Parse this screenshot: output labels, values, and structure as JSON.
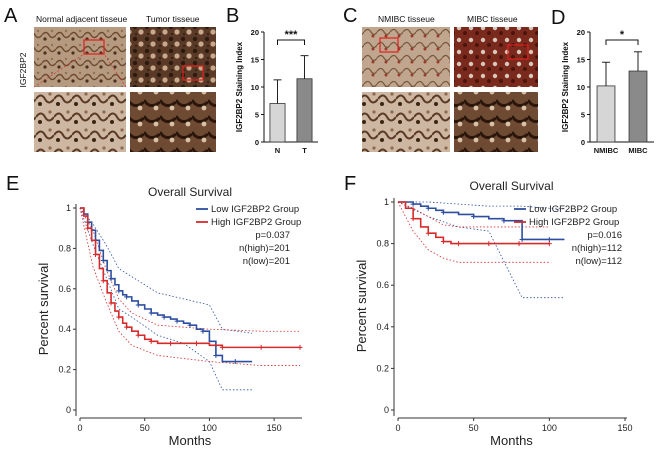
{
  "panel_labels": {
    "a": "A",
    "b": "B",
    "c": "C",
    "d": "D",
    "e": "E",
    "f": "F"
  },
  "histology": {
    "a_left": "Normal adjacent tisseue",
    "a_right": "Tumor tisseue",
    "a_side": "IGF2BP2",
    "c_left": "NMIBC tisseue",
    "c_right": "MIBC tisseue"
  },
  "colors": {
    "low": "#2e4fa0",
    "high": "#d62b2b",
    "bar_light": "#d6d6d6",
    "bar_dark": "#8a8a8a"
  },
  "chart_data": [
    {
      "id": "B",
      "type": "bar",
      "ylabel": "IGF2BP2 Staining Index",
      "categories": [
        "N",
        "T"
      ],
      "values": [
        7,
        11.5
      ],
      "errors": [
        4.3,
        4.2
      ],
      "ylim": [
        0,
        20
      ],
      "yticks": [
        0,
        5,
        10,
        15,
        20
      ],
      "significance": "***"
    },
    {
      "id": "D",
      "type": "bar",
      "ylabel": "IGF2BP2 Staining Index",
      "categories": [
        "NMIBC",
        "MIBC"
      ],
      "values": [
        10.2,
        12.9
      ],
      "errors": [
        4.3,
        3.5
      ],
      "ylim": [
        0,
        20
      ],
      "yticks": [
        0,
        5,
        10,
        15,
        20
      ],
      "significance": "*"
    },
    {
      "id": "E",
      "type": "line",
      "title": "Overall Survival",
      "xlabel": "Months",
      "ylabel": "Percent survival",
      "xlim": [
        0,
        170
      ],
      "ylim": [
        0,
        1
      ],
      "xticks": [
        0,
        50,
        100,
        150
      ],
      "yticks": [
        0.0,
        0.2,
        0.4,
        0.6,
        0.8,
        1.0
      ],
      "legend": {
        "low_label": "Low IGF2BP2 Group",
        "high_label": "High IGF2BP2 Group",
        "p": "p=0.037",
        "n_high": "n(high)=201",
        "n_low": "n(low)=201"
      },
      "series": [
        {
          "name": "Low IGF2BP2 Group",
          "x": [
            0,
            3,
            6,
            9,
            12,
            15,
            18,
            21,
            24,
            27,
            30,
            33,
            36,
            40,
            45,
            50,
            55,
            60,
            65,
            70,
            75,
            80,
            85,
            90,
            95,
            100,
            105,
            110,
            120,
            133
          ],
          "y": [
            1.0,
            0.97,
            0.93,
            0.89,
            0.84,
            0.79,
            0.74,
            0.69,
            0.65,
            0.62,
            0.59,
            0.57,
            0.56,
            0.54,
            0.52,
            0.5,
            0.48,
            0.47,
            0.46,
            0.45,
            0.44,
            0.43,
            0.42,
            0.4,
            0.39,
            0.34,
            0.27,
            0.24,
            0.24,
            0.24
          ]
        },
        {
          "name": "High IGF2BP2 Group",
          "x": [
            0,
            3,
            6,
            9,
            12,
            15,
            18,
            21,
            24,
            27,
            30,
            33,
            36,
            40,
            45,
            50,
            55,
            60,
            70,
            80,
            90,
            100,
            110,
            120,
            140,
            160,
            170
          ],
          "y": [
            1.0,
            0.96,
            0.9,
            0.84,
            0.77,
            0.7,
            0.64,
            0.58,
            0.53,
            0.49,
            0.46,
            0.43,
            0.41,
            0.39,
            0.37,
            0.35,
            0.34,
            0.33,
            0.33,
            0.33,
            0.33,
            0.32,
            0.31,
            0.31,
            0.31,
            0.31,
            0.31
          ]
        }
      ],
      "ci": {
        "low_upper": [
          [
            0,
            1.0
          ],
          [
            10,
            0.92
          ],
          [
            20,
            0.82
          ],
          [
            30,
            0.7
          ],
          [
            40,
            0.66
          ],
          [
            60,
            0.58
          ],
          [
            80,
            0.55
          ],
          [
            100,
            0.52
          ],
          [
            110,
            0.4
          ],
          [
            133,
            0.38
          ]
        ],
        "low_lower": [
          [
            0,
            1.0
          ],
          [
            10,
            0.82
          ],
          [
            20,
            0.66
          ],
          [
            30,
            0.5
          ],
          [
            40,
            0.46
          ],
          [
            60,
            0.37
          ],
          [
            80,
            0.33
          ],
          [
            100,
            0.24
          ],
          [
            110,
            0.1
          ],
          [
            133,
            0.1
          ]
        ],
        "high_upper": [
          [
            0,
            1.0
          ],
          [
            10,
            0.89
          ],
          [
            20,
            0.7
          ],
          [
            30,
            0.55
          ],
          [
            40,
            0.48
          ],
          [
            60,
            0.42
          ],
          [
            100,
            0.4
          ],
          [
            140,
            0.39
          ],
          [
            170,
            0.39
          ]
        ],
        "high_lower": [
          [
            0,
            1.0
          ],
          [
            10,
            0.71
          ],
          [
            20,
            0.54
          ],
          [
            30,
            0.39
          ],
          [
            40,
            0.32
          ],
          [
            60,
            0.27
          ],
          [
            100,
            0.24
          ],
          [
            140,
            0.22
          ],
          [
            170,
            0.22
          ]
        ]
      }
    },
    {
      "id": "F",
      "type": "line",
      "title": "Overall Survival",
      "xlabel": "Months",
      "ylabel": "Percent survival",
      "xlim": [
        0,
        150
      ],
      "ylim": [
        0,
        1
      ],
      "xticks": [
        0,
        50,
        100,
        150
      ],
      "yticks": [
        0.0,
        0.2,
        0.4,
        0.6,
        0.8,
        1.0
      ],
      "legend": {
        "low_label": "Low IGF2BP2 Group",
        "high_label": "High IGF2BP2 Group",
        "p": "p=0.016",
        "n_high": "n(high)=112",
        "n_low": "n(low)=112"
      },
      "series": [
        {
          "name": "Low IGF2BP2 Group",
          "x": [
            0,
            5,
            10,
            15,
            20,
            25,
            30,
            40,
            50,
            60,
            70,
            80,
            82,
            90,
            100,
            110
          ],
          "y": [
            1.0,
            1.0,
            0.99,
            0.98,
            0.97,
            0.96,
            0.95,
            0.94,
            0.93,
            0.92,
            0.91,
            0.91,
            0.82,
            0.82,
            0.82,
            0.82
          ]
        },
        {
          "name": "High IGF2BP2 Group",
          "x": [
            0,
            5,
            10,
            15,
            20,
            25,
            30,
            35,
            40,
            50,
            60,
            70,
            80,
            90,
            100
          ],
          "y": [
            1.0,
            0.97,
            0.92,
            0.88,
            0.85,
            0.83,
            0.81,
            0.8,
            0.8,
            0.8,
            0.8,
            0.8,
            0.8,
            0.8,
            0.8
          ]
        }
      ],
      "ci": {
        "low_upper": [
          [
            0,
            1.0
          ],
          [
            20,
            1.0
          ],
          [
            40,
            0.99
          ],
          [
            60,
            0.98
          ],
          [
            82,
            0.98
          ],
          [
            100,
            0.97
          ],
          [
            110,
            0.97
          ]
        ],
        "low_lower": [
          [
            0,
            1.0
          ],
          [
            20,
            0.93
          ],
          [
            40,
            0.88
          ],
          [
            60,
            0.86
          ],
          [
            82,
            0.54
          ],
          [
            100,
            0.54
          ],
          [
            110,
            0.54
          ]
        ],
        "high_upper": [
          [
            0,
            1.0
          ],
          [
            10,
            0.97
          ],
          [
            20,
            0.93
          ],
          [
            30,
            0.89
          ],
          [
            40,
            0.88
          ],
          [
            100,
            0.88
          ]
        ],
        "high_lower": [
          [
            0,
            1.0
          ],
          [
            10,
            0.86
          ],
          [
            20,
            0.77
          ],
          [
            30,
            0.73
          ],
          [
            40,
            0.71
          ],
          [
            100,
            0.71
          ]
        ]
      }
    }
  ]
}
